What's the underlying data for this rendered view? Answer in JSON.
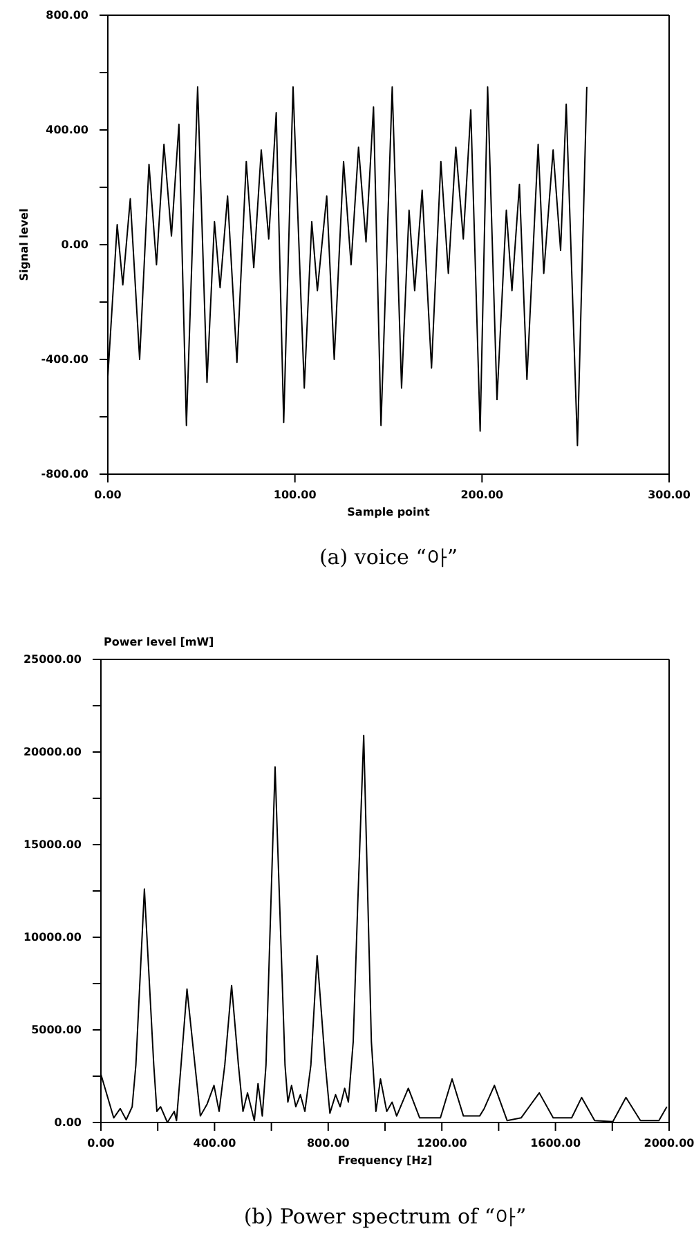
{
  "chart_data": [
    {
      "type": "line",
      "title": "(a) voice “아”",
      "xlabel": "Sample point",
      "ylabel": "Signal level",
      "x": [
        0,
        5,
        8,
        12,
        17,
        22,
        26,
        30,
        34,
        38,
        42,
        48,
        53,
        57,
        60,
        64,
        69,
        74,
        78,
        82,
        86,
        90,
        94,
        99,
        105,
        109,
        112,
        117,
        121,
        126,
        130,
        134,
        138,
        142,
        146,
        152,
        157,
        161,
        164,
        168,
        173,
        178,
        182,
        186,
        190,
        194,
        199,
        203,
        208,
        213,
        216,
        220,
        224,
        230,
        233,
        238,
        242,
        245,
        251,
        256
      ],
      "series": [
        {
          "color": "#000000",
          "values": [
            -460,
            70,
            -140,
            160,
            -400,
            280,
            -70,
            350,
            30,
            420,
            -630,
            550,
            -480,
            80,
            -150,
            170,
            -410,
            290,
            -80,
            330,
            20,
            460,
            -620,
            550,
            -500,
            80,
            -160,
            170,
            -400,
            290,
            -70,
            340,
            10,
            480,
            -630,
            550,
            -500,
            120,
            -160,
            190,
            -430,
            290,
            -100,
            340,
            20,
            470,
            -650,
            550,
            -540,
            120,
            -160,
            210,
            -470,
            350,
            -100,
            330,
            -20,
            490,
            -700,
            550
          ]
        }
      ],
      "xlim": [
        0,
        300
      ],
      "xticks": [
        {
          "value": 0,
          "label": "0.00"
        },
        {
          "value": 100,
          "label": "100.00"
        },
        {
          "value": 200,
          "label": "200.00"
        },
        {
          "value": 300,
          "label": "300.00"
        }
      ],
      "ylim": [
        -800,
        800
      ],
      "yticks": [
        {
          "value": -800,
          "label": "-800.00"
        },
        {
          "value": -600,
          "label": null
        },
        {
          "value": -400,
          "label": "-400.00"
        },
        {
          "value": -200,
          "label": null
        },
        {
          "value": 0,
          "label": "0.00"
        },
        {
          "value": 200,
          "label": null
        },
        {
          "value": 400,
          "label": "400.00"
        },
        {
          "value": 600,
          "label": null
        },
        {
          "value": 800,
          "label": "800.00"
        }
      ]
    },
    {
      "type": "line",
      "title": "(b) Power spectrum of “아”",
      "xlabel": "Frequency [Hz]",
      "ylabel": "Power level [mW]",
      "x": [
        0,
        45,
        68,
        89,
        110,
        123,
        153,
        186,
        197,
        210,
        234,
        258,
        266,
        282,
        303,
        331,
        350,
        374,
        398,
        416,
        436,
        460,
        484,
        500,
        516,
        540,
        553,
        568,
        581,
        613,
        648,
        658,
        671,
        686,
        702,
        718,
        739,
        761,
        790,
        806,
        826,
        842,
        858,
        871,
        888,
        904,
        925,
        952,
        968,
        984,
        1006,
        1025,
        1041,
        1082,
        1122,
        1195,
        1236,
        1276,
        1333,
        1349,
        1385,
        1430,
        1479,
        1543,
        1592,
        1657,
        1692,
        1738,
        1802,
        1848,
        1899,
        1964,
        1992
      ],
      "series": [
        {
          "color": "#000000",
          "values": [
            2600,
            250,
            750,
            150,
            850,
            3100,
            12600,
            3100,
            600,
            850,
            0,
            600,
            100,
            3100,
            7200,
            3100,
            350,
            1000,
            2000,
            600,
            3100,
            7400,
            3100,
            600,
            1600,
            100,
            2100,
            350,
            3100,
            19200,
            3100,
            1100,
            2000,
            850,
            1500,
            600,
            3100,
            9000,
            3100,
            500,
            1500,
            850,
            1850,
            1100,
            4350,
            11800,
            20900,
            4350,
            600,
            2350,
            600,
            1100,
            350,
            1850,
            250,
            250,
            2350,
            350,
            350,
            750,
            2000,
            100,
            250,
            1600,
            250,
            250,
            1350,
            100,
            50,
            1350,
            100,
            100,
            850
          ]
        }
      ],
      "xlim": [
        0,
        2000
      ],
      "xticks": [
        {
          "value": 0,
          "label": "0.00"
        },
        {
          "value": 200,
          "label": null
        },
        {
          "value": 400,
          "label": "400.00"
        },
        {
          "value": 600,
          "label": null
        },
        {
          "value": 800,
          "label": "800.00"
        },
        {
          "value": 1000,
          "label": null
        },
        {
          "value": 1200,
          "label": "1200.00"
        },
        {
          "value": 1400,
          "label": null
        },
        {
          "value": 1600,
          "label": "1600.00"
        },
        {
          "value": 1800,
          "label": null
        },
        {
          "value": 2000,
          "label": "2000.00"
        }
      ],
      "ylim": [
        0,
        25000
      ],
      "yticks": [
        {
          "value": 0,
          "label": "0.00"
        },
        {
          "value": 2500,
          "label": null
        },
        {
          "value": 5000,
          "label": "5000.00"
        },
        {
          "value": 7500,
          "label": null
        },
        {
          "value": 10000,
          "label": "10000.00"
        },
        {
          "value": 12500,
          "label": null
        },
        {
          "value": 15000,
          "label": "15000.00"
        },
        {
          "value": 17500,
          "label": null
        },
        {
          "value": 20000,
          "label": "20000.00"
        },
        {
          "value": 22500,
          "label": null
        },
        {
          "value": 25000,
          "label": "25000.00"
        }
      ]
    }
  ]
}
